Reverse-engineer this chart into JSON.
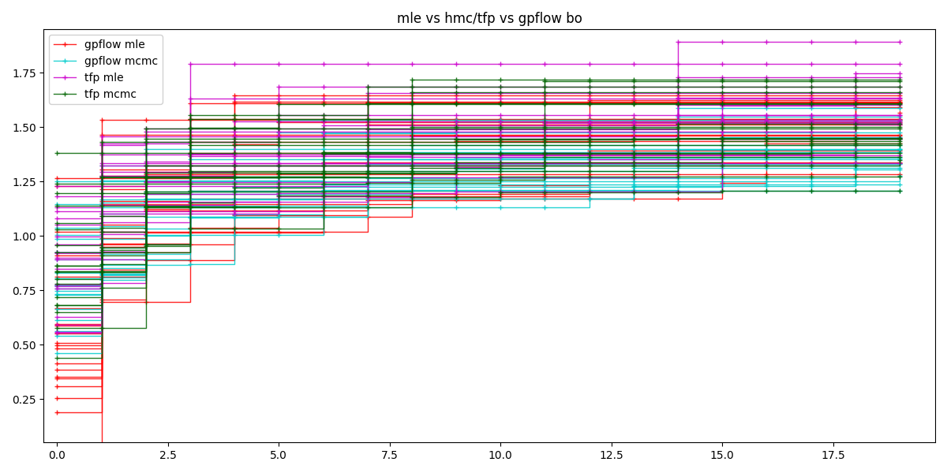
{
  "title": "mle vs hmc/tfp vs gpflow bo",
  "legend_labels": [
    "gpflow mle",
    "gpflow mcmc",
    "tfp mle",
    "tfp mcmc"
  ],
  "colors": {
    "gpflow_mle": "#ff0000",
    "gpflow_mcmc": "#00cccc",
    "tfp_mle": "#cc00cc",
    "tfp_mcmc": "#006400"
  },
  "xlim": [
    -0.3,
    19.8
  ],
  "ylim": [
    0.05,
    1.95
  ],
  "alpha": 0.85,
  "linewidth": 1.0,
  "marker": "+",
  "markersize": 5,
  "seed": 0,
  "n_iterations": 19,
  "n_runs": 20,
  "method_params": {
    "gpflow_mle": {
      "mu": 1.05,
      "sigma": 0.25,
      "start_mu": 0.7,
      "start_sigma": 0.3
    },
    "gpflow_mcmc": {
      "mu": 1.05,
      "sigma": 0.2,
      "start_mu": 0.85,
      "start_sigma": 0.2
    },
    "tfp_mle": {
      "mu": 1.1,
      "sigma": 0.25,
      "start_mu": 0.85,
      "start_sigma": 0.2
    },
    "tfp_mcmc": {
      "mu": 1.05,
      "sigma": 0.25,
      "start_mu": 0.8,
      "start_sigma": 0.25
    }
  }
}
